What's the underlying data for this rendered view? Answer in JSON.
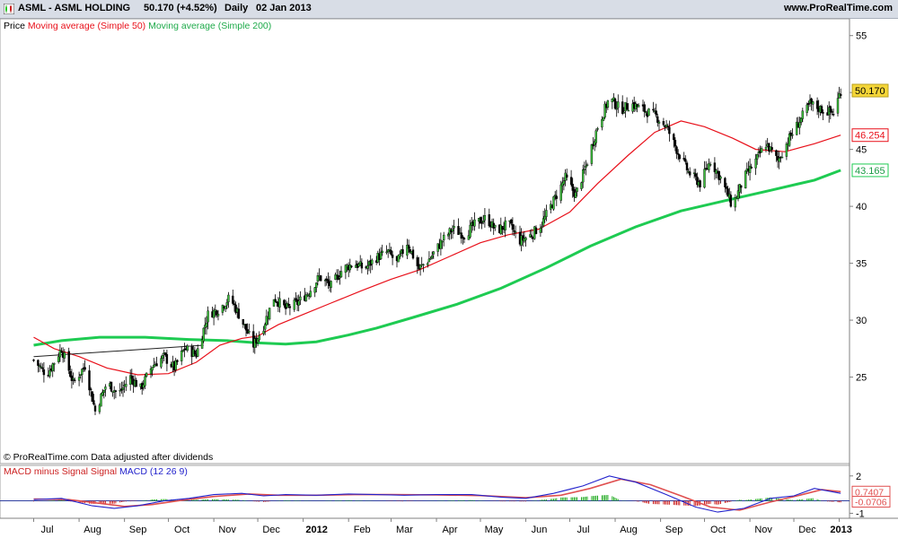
{
  "header": {
    "title": "ASML - ASML HOLDING",
    "quote": "50.170 (+4.52%)",
    "period": "Daily",
    "date": "02 Jan 2013",
    "site": "www.ProRealTime.com",
    "icon": "candlestick-chart-icon"
  },
  "legend": {
    "price": "Price",
    "ma50": "Moving average (Simple 50)",
    "ma200": "Moving average (Simple 200)"
  },
  "footer_note": "© ProRealTime.com  Data adjusted after dividends",
  "macd_legend": {
    "hist": "MACD minus Signal Signal",
    "macd": "MACD (12 26 9)"
  },
  "colors": {
    "ma50": "#e8101a",
    "ma200": "#1ecb52",
    "macd": "#2222cc",
    "signal": "#e05050",
    "hist_pos": "#22aa22",
    "hist_neg": "#cc2222",
    "last_price_bg": "#f5d638"
  },
  "chart_data": [
    {
      "type": "candlestick",
      "title": "ASML - ASML HOLDING",
      "ylim": [
        20,
        56
      ],
      "y_ticks": [
        25,
        30,
        35,
        40,
        45,
        50,
        55
      ],
      "x_labels": [
        "Jul",
        "Aug",
        "Sep",
        "Oct",
        "Nov",
        "Dec",
        "2012",
        "Feb",
        "Mar",
        "Apr",
        "May",
        "Jun",
        "Jul",
        "Aug",
        "Sep",
        "Oct",
        "Nov",
        "Dec",
        "2013"
      ],
      "last_values": {
        "price": 50.17,
        "ma50": 46.254,
        "ma200": 43.165
      },
      "price_path": [
        [
          "2011-07-01",
          26.5
        ],
        [
          "2011-07-10",
          25.2
        ],
        [
          "2011-07-20",
          27.5
        ],
        [
          "2011-07-28",
          24.5
        ],
        [
          "2011-08-05",
          26.0
        ],
        [
          "2011-08-12",
          22.0
        ],
        [
          "2011-08-20",
          24.5
        ],
        [
          "2011-08-28",
          23.5
        ],
        [
          "2011-09-05",
          25.0
        ],
        [
          "2011-09-12",
          24.0
        ],
        [
          "2011-09-20",
          26.0
        ],
        [
          "2011-09-28",
          26.8
        ],
        [
          "2011-10-05",
          25.8
        ],
        [
          "2011-10-12",
          27.5
        ],
        [
          "2011-10-20",
          27.0
        ],
        [
          "2011-10-28",
          30.5
        ],
        [
          "2011-11-05",
          31.0
        ],
        [
          "2011-11-12",
          32.0
        ],
        [
          "2011-11-20",
          30.0
        ],
        [
          "2011-11-28",
          27.8
        ],
        [
          "2011-12-05",
          29.5
        ],
        [
          "2011-12-12",
          32.0
        ],
        [
          "2011-12-20",
          31.0
        ],
        [
          "2011-12-28",
          31.5
        ],
        [
          "2012-01-05",
          32.5
        ],
        [
          "2012-01-12",
          33.8
        ],
        [
          "2012-01-20",
          33.0
        ],
        [
          "2012-01-28",
          34.5
        ],
        [
          "2012-02-05",
          35.0
        ],
        [
          "2012-02-12",
          34.5
        ],
        [
          "2012-02-20",
          35.5
        ],
        [
          "2012-02-28",
          36.0
        ],
        [
          "2012-03-05",
          35.0
        ],
        [
          "2012-03-12",
          36.8
        ],
        [
          "2012-03-20",
          34.5
        ],
        [
          "2012-03-28",
          35.5
        ],
        [
          "2012-04-05",
          37.0
        ],
        [
          "2012-04-12",
          38.0
        ],
        [
          "2012-04-20",
          37.5
        ],
        [
          "2012-04-28",
          38.5
        ],
        [
          "2012-05-05",
          39.0
        ],
        [
          "2012-05-12",
          37.8
        ],
        [
          "2012-05-20",
          38.5
        ],
        [
          "2012-05-28",
          37.0
        ],
        [
          "2012-06-05",
          37.5
        ],
        [
          "2012-06-12",
          38.5
        ],
        [
          "2012-06-20",
          40.5
        ],
        [
          "2012-06-28",
          42.5
        ],
        [
          "2012-07-05",
          41.0
        ],
        [
          "2012-07-12",
          43.5
        ],
        [
          "2012-07-20",
          47.0
        ],
        [
          "2012-07-28",
          49.5
        ],
        [
          "2012-08-05",
          48.5
        ],
        [
          "2012-08-12",
          49.0
        ],
        [
          "2012-08-20",
          48.5
        ],
        [
          "2012-08-28",
          48.0
        ],
        [
          "2012-09-05",
          47.0
        ],
        [
          "2012-09-12",
          45.0
        ],
        [
          "2012-09-20",
          43.0
        ],
        [
          "2012-09-28",
          42.0
        ],
        [
          "2012-10-05",
          44.0
        ],
        [
          "2012-10-12",
          42.5
        ],
        [
          "2012-10-20",
          40.0
        ],
        [
          "2012-10-28",
          42.5
        ],
        [
          "2012-11-05",
          44.0
        ],
        [
          "2012-11-12",
          45.5
        ],
        [
          "2012-11-20",
          44.0
        ],
        [
          "2012-11-28",
          46.0
        ],
        [
          "2012-12-05",
          47.5
        ],
        [
          "2012-12-12",
          49.0
        ],
        [
          "2012-12-20",
          48.5
        ],
        [
          "2012-12-28",
          48.2
        ],
        [
          "2013-01-02",
          50.17
        ]
      ],
      "ma50_path": [
        [
          "2011-07-01",
          28.5
        ],
        [
          "2011-07-15",
          27.5
        ],
        [
          "2011-08-01",
          26.8
        ],
        [
          "2011-08-20",
          25.8
        ],
        [
          "2011-09-10",
          25.2
        ],
        [
          "2011-10-01",
          25.3
        ],
        [
          "2011-10-20",
          26.3
        ],
        [
          "2011-11-05",
          27.8
        ],
        [
          "2011-11-20",
          28.4
        ],
        [
          "2011-12-01",
          28.6
        ],
        [
          "2011-12-15",
          29.6
        ],
        [
          "2012-01-01",
          30.5
        ],
        [
          "2012-01-20",
          31.5
        ],
        [
          "2012-02-10",
          32.6
        ],
        [
          "2012-03-01",
          33.6
        ],
        [
          "2012-03-20",
          34.4
        ],
        [
          "2012-04-10",
          35.6
        ],
        [
          "2012-05-01",
          36.8
        ],
        [
          "2012-05-20",
          37.5
        ],
        [
          "2012-06-10",
          38.0
        ],
        [
          "2012-07-01",
          39.5
        ],
        [
          "2012-07-20",
          42.0
        ],
        [
          "2012-08-10",
          44.5
        ],
        [
          "2012-08-28",
          46.5
        ],
        [
          "2012-09-15",
          47.5
        ],
        [
          "2012-10-01",
          47.0
        ],
        [
          "2012-10-20",
          46.0
        ],
        [
          "2012-11-05",
          45.0
        ],
        [
          "2012-11-25",
          44.8
        ],
        [
          "2012-12-15",
          45.5
        ],
        [
          "2013-01-02",
          46.254
        ]
      ],
      "ma200_path": [
        [
          "2011-07-01",
          27.8
        ],
        [
          "2011-07-20",
          28.2
        ],
        [
          "2011-08-15",
          28.5
        ],
        [
          "2011-09-15",
          28.5
        ],
        [
          "2011-10-15",
          28.3
        ],
        [
          "2011-11-10",
          28.2
        ],
        [
          "2011-12-01",
          28.0
        ],
        [
          "2011-12-20",
          27.9
        ],
        [
          "2012-01-10",
          28.1
        ],
        [
          "2012-02-01",
          28.7
        ],
        [
          "2012-02-20",
          29.3
        ],
        [
          "2012-03-15",
          30.2
        ],
        [
          "2012-04-15",
          31.4
        ],
        [
          "2012-05-15",
          32.8
        ],
        [
          "2012-06-15",
          34.6
        ],
        [
          "2012-07-15",
          36.5
        ],
        [
          "2012-08-15",
          38.2
        ],
        [
          "2012-09-15",
          39.6
        ],
        [
          "2012-10-15",
          40.5
        ],
        [
          "2012-11-15",
          41.4
        ],
        [
          "2012-12-15",
          42.3
        ],
        [
          "2013-01-02",
          43.165
        ]
      ],
      "trendline": [
        [
          "2011-07-01",
          26.8
        ],
        [
          "2011-10-25",
          27.8
        ]
      ]
    },
    {
      "type": "line",
      "title": "MACD (12 26 9)",
      "ylim": [
        -1.4,
        2.2
      ],
      "y_ticks": [
        -1,
        2
      ],
      "last_values": {
        "signal": 0.7407,
        "hist": -0.0706
      },
      "macd_path": [
        [
          "2011-07-01",
          0.1
        ],
        [
          "2011-07-20",
          0.2
        ],
        [
          "2011-08-10",
          -0.4
        ],
        [
          "2011-08-25",
          -0.6
        ],
        [
          "2011-09-10",
          -0.4
        ],
        [
          "2011-09-28",
          0.0
        ],
        [
          "2011-10-15",
          0.2
        ],
        [
          "2011-11-01",
          0.5
        ],
        [
          "2011-11-20",
          0.6
        ],
        [
          "2011-12-05",
          0.4
        ],
        [
          "2011-12-20",
          0.5
        ],
        [
          "2012-01-10",
          0.45
        ],
        [
          "2012-02-01",
          0.55
        ],
        [
          "2012-02-20",
          0.5
        ],
        [
          "2012-03-10",
          0.45
        ],
        [
          "2012-04-01",
          0.5
        ],
        [
          "2012-04-25",
          0.5
        ],
        [
          "2012-05-15",
          0.3
        ],
        [
          "2012-06-01",
          0.2
        ],
        [
          "2012-06-20",
          0.6
        ],
        [
          "2012-07-10",
          1.2
        ],
        [
          "2012-07-28",
          2.0
        ],
        [
          "2012-08-15",
          1.5
        ],
        [
          "2012-09-05",
          0.5
        ],
        [
          "2012-09-25",
          -0.5
        ],
        [
          "2012-10-10",
          -0.9
        ],
        [
          "2012-10-28",
          -0.6
        ],
        [
          "2012-11-15",
          0.2
        ],
        [
          "2012-12-01",
          0.4
        ],
        [
          "2012-12-15",
          1.0
        ],
        [
          "2013-01-02",
          0.6
        ]
      ],
      "signal_path": [
        [
          "2011-07-01",
          0.15
        ],
        [
          "2011-07-25",
          0.1
        ],
        [
          "2011-08-15",
          -0.2
        ],
        [
          "2011-09-01",
          -0.45
        ],
        [
          "2011-09-20",
          -0.3
        ],
        [
          "2011-10-10",
          0.05
        ],
        [
          "2011-11-01",
          0.35
        ],
        [
          "2011-11-25",
          0.55
        ],
        [
          "2011-12-15",
          0.45
        ],
        [
          "2012-01-10",
          0.45
        ],
        [
          "2012-02-05",
          0.5
        ],
        [
          "2012-03-01",
          0.5
        ],
        [
          "2012-04-01",
          0.48
        ],
        [
          "2012-05-01",
          0.42
        ],
        [
          "2012-06-01",
          0.25
        ],
        [
          "2012-06-25",
          0.45
        ],
        [
          "2012-07-15",
          1.0
        ],
        [
          "2012-08-05",
          1.75
        ],
        [
          "2012-08-25",
          1.3
        ],
        [
          "2012-09-15",
          0.4
        ],
        [
          "2012-10-05",
          -0.5
        ],
        [
          "2012-10-25",
          -0.75
        ],
        [
          "2012-11-15",
          -0.1
        ],
        [
          "2012-12-05",
          0.45
        ],
        [
          "2012-12-20",
          0.9
        ],
        [
          "2013-01-02",
          0.74
        ]
      ]
    }
  ]
}
